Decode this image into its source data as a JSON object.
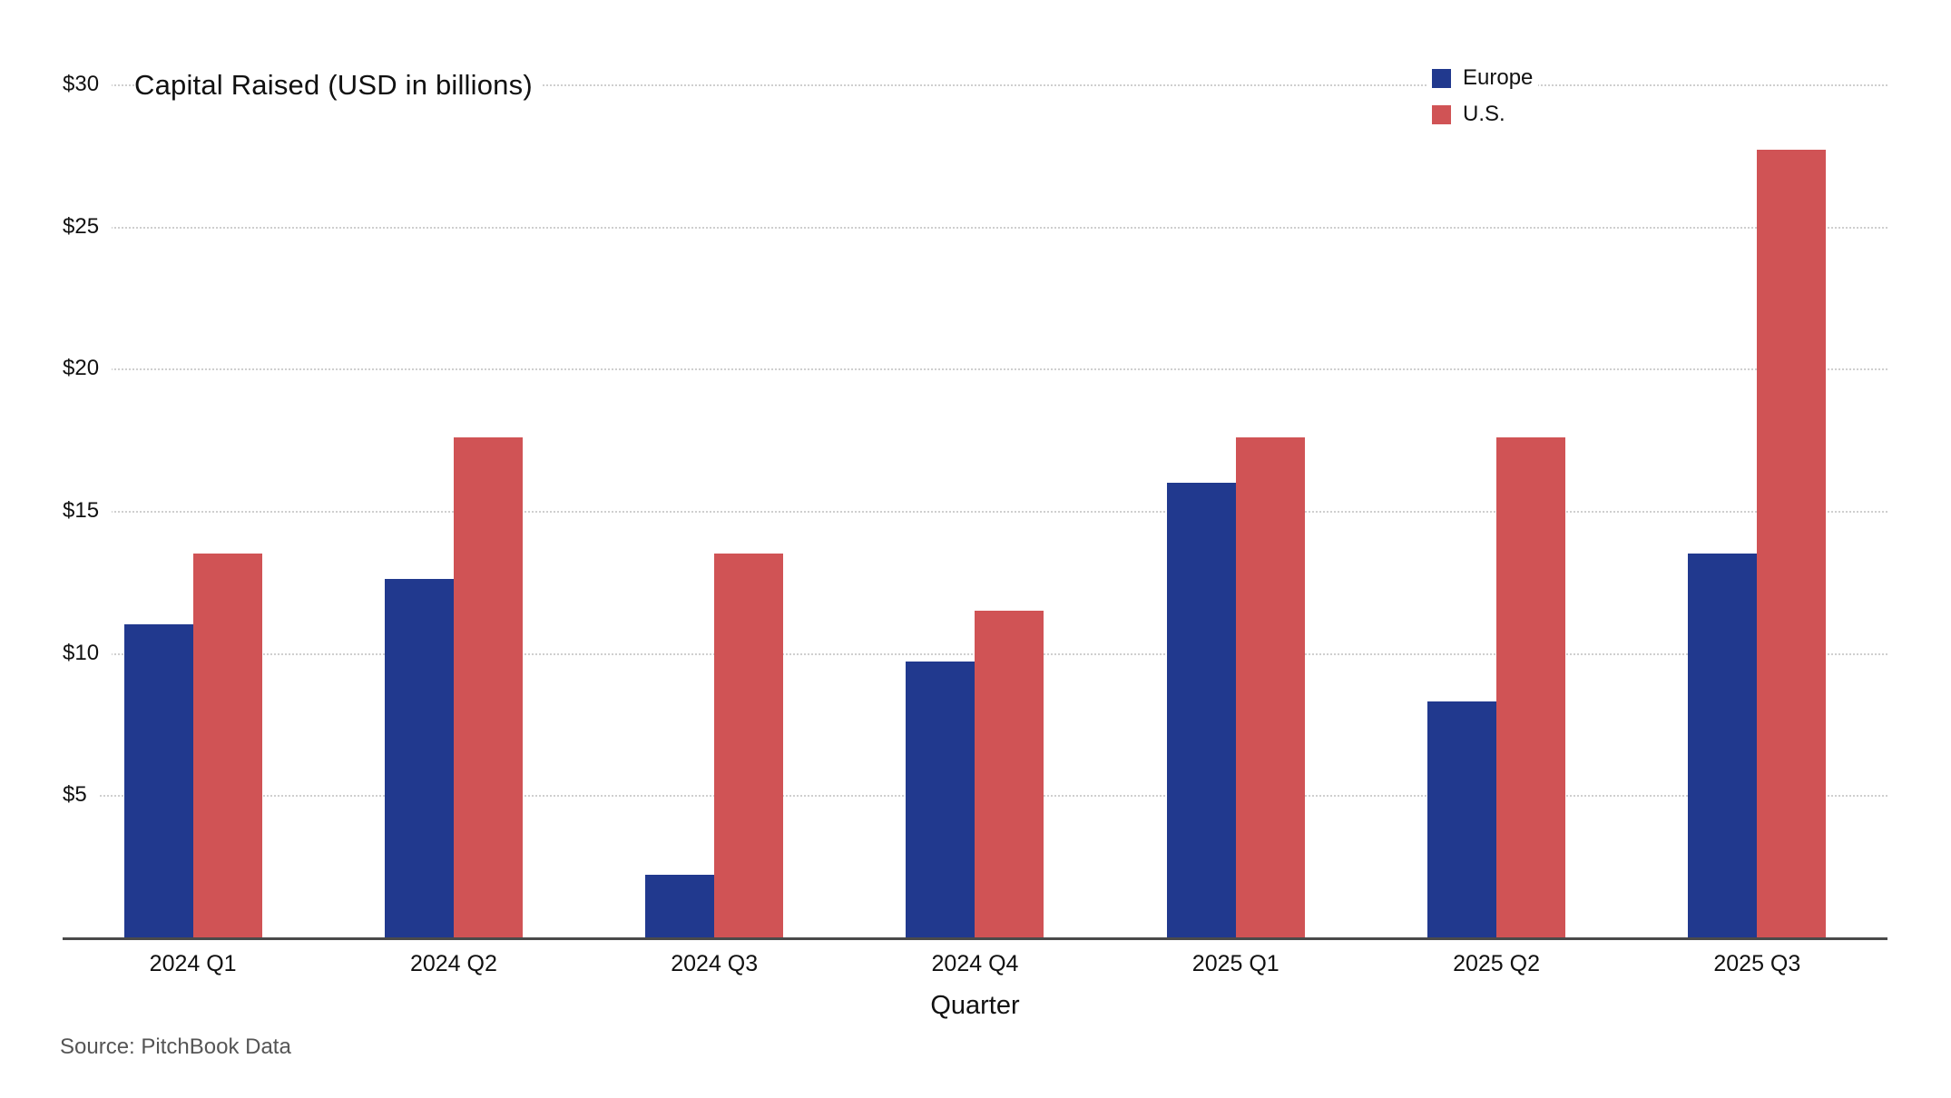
{
  "chart_data": {
    "type": "bar",
    "title": "Capital Raised (USD in billions)",
    "xlabel": "Quarter",
    "ylabel": "",
    "categories": [
      "2024 Q1",
      "2024 Q2",
      "2024 Q3",
      "2024 Q4",
      "2025 Q1",
      "2025 Q2",
      "2025 Q3"
    ],
    "series": [
      {
        "name": "Europe",
        "color": "#21398e",
        "values": [
          11.0,
          12.6,
          2.2,
          9.7,
          16.0,
          8.3,
          13.5
        ]
      },
      {
        "name": "U.S.",
        "color": "#d05355",
        "values": [
          13.5,
          17.6,
          13.5,
          11.5,
          17.6,
          17.6,
          27.7
        ]
      }
    ],
    "ylim": [
      0,
      30
    ],
    "y_ticks": [
      5,
      10,
      15,
      20,
      25,
      30
    ],
    "y_tick_prefix": "$",
    "grid": "horizontal-dotted",
    "legend_position": "top-right",
    "source": "Source: PitchBook Data"
  }
}
